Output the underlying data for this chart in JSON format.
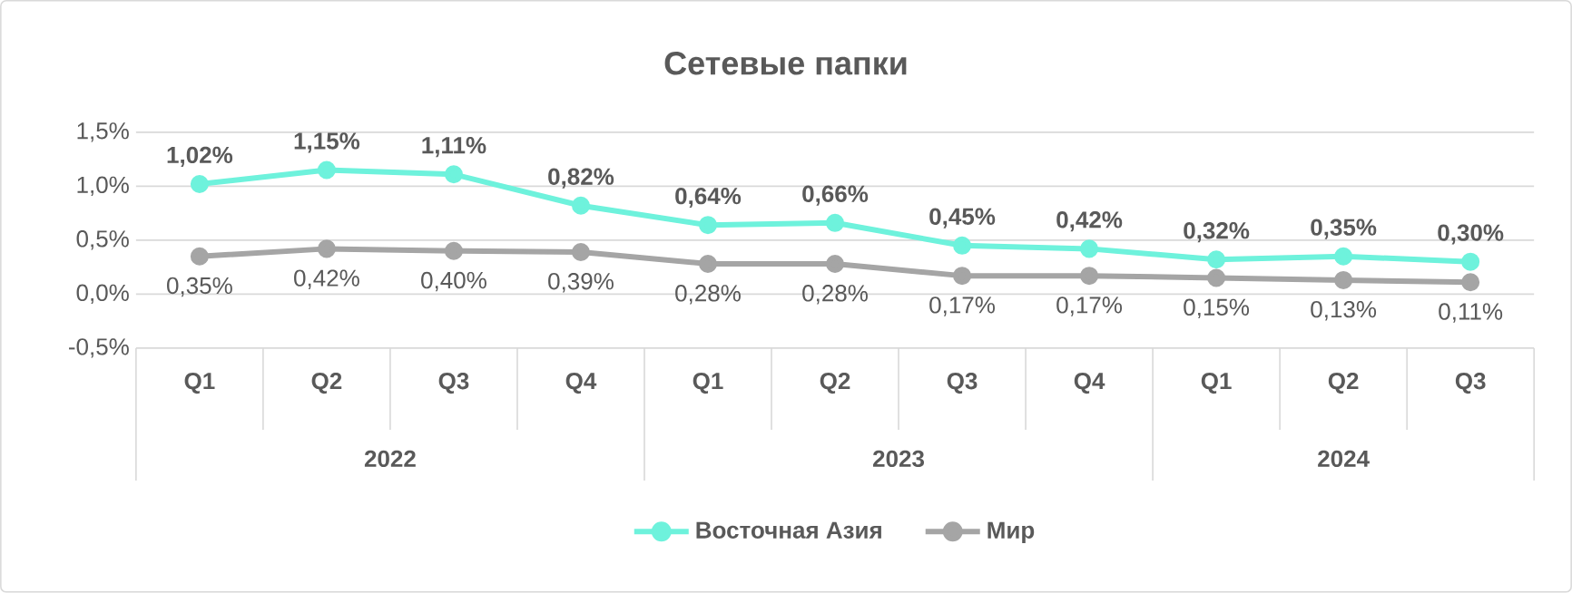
{
  "chart_data": {
    "type": "line",
    "title": "Сетевые папки",
    "categories": [
      "Q1",
      "Q2",
      "Q3",
      "Q4",
      "Q1",
      "Q2",
      "Q3",
      "Q4",
      "Q1",
      "Q2",
      "Q3"
    ],
    "annotations": [
      "2022",
      "2023",
      "2024"
    ],
    "series": [
      {
        "name": "Восточная Азия",
        "color": "#6ef2dc",
        "values": [
          1.02,
          1.15,
          1.11,
          0.82,
          0.64,
          0.66,
          0.45,
          0.42,
          0.32,
          0.35,
          0.3
        ],
        "value_labels": [
          "1,02%",
          "1,15%",
          "1,11%",
          "0,82%",
          "0,64%",
          "0,66%",
          "0,45%",
          "0,42%",
          "0,32%",
          "0,35%",
          "0,30%"
        ]
      },
      {
        "name": "Мир",
        "color": "#a5a5a5",
        "values": [
          0.35,
          0.42,
          0.4,
          0.39,
          0.28,
          0.28,
          0.17,
          0.17,
          0.15,
          0.13,
          0.11
        ],
        "value_labels": [
          "0,35%",
          "0,42%",
          "0,40%",
          "0,39%",
          "0,28%",
          "0,28%",
          "0,17%",
          "0,17%",
          "0,15%",
          "0,13%",
          "0,11%"
        ]
      }
    ],
    "ylim": [
      -0.5,
      1.5
    ],
    "yticks": [
      {
        "value": -0.5,
        "label": "-0,5%"
      },
      {
        "value": 0,
        "label": "0,0%"
      },
      {
        "value": 0.5,
        "label": "0,5%"
      },
      {
        "value": 1.0,
        "label": "1,0%"
      },
      {
        "value": 1.5,
        "label": "1,5%"
      }
    ],
    "grid": "y",
    "legend": "bottom",
    "marker": "circle",
    "line_style": "solid"
  }
}
